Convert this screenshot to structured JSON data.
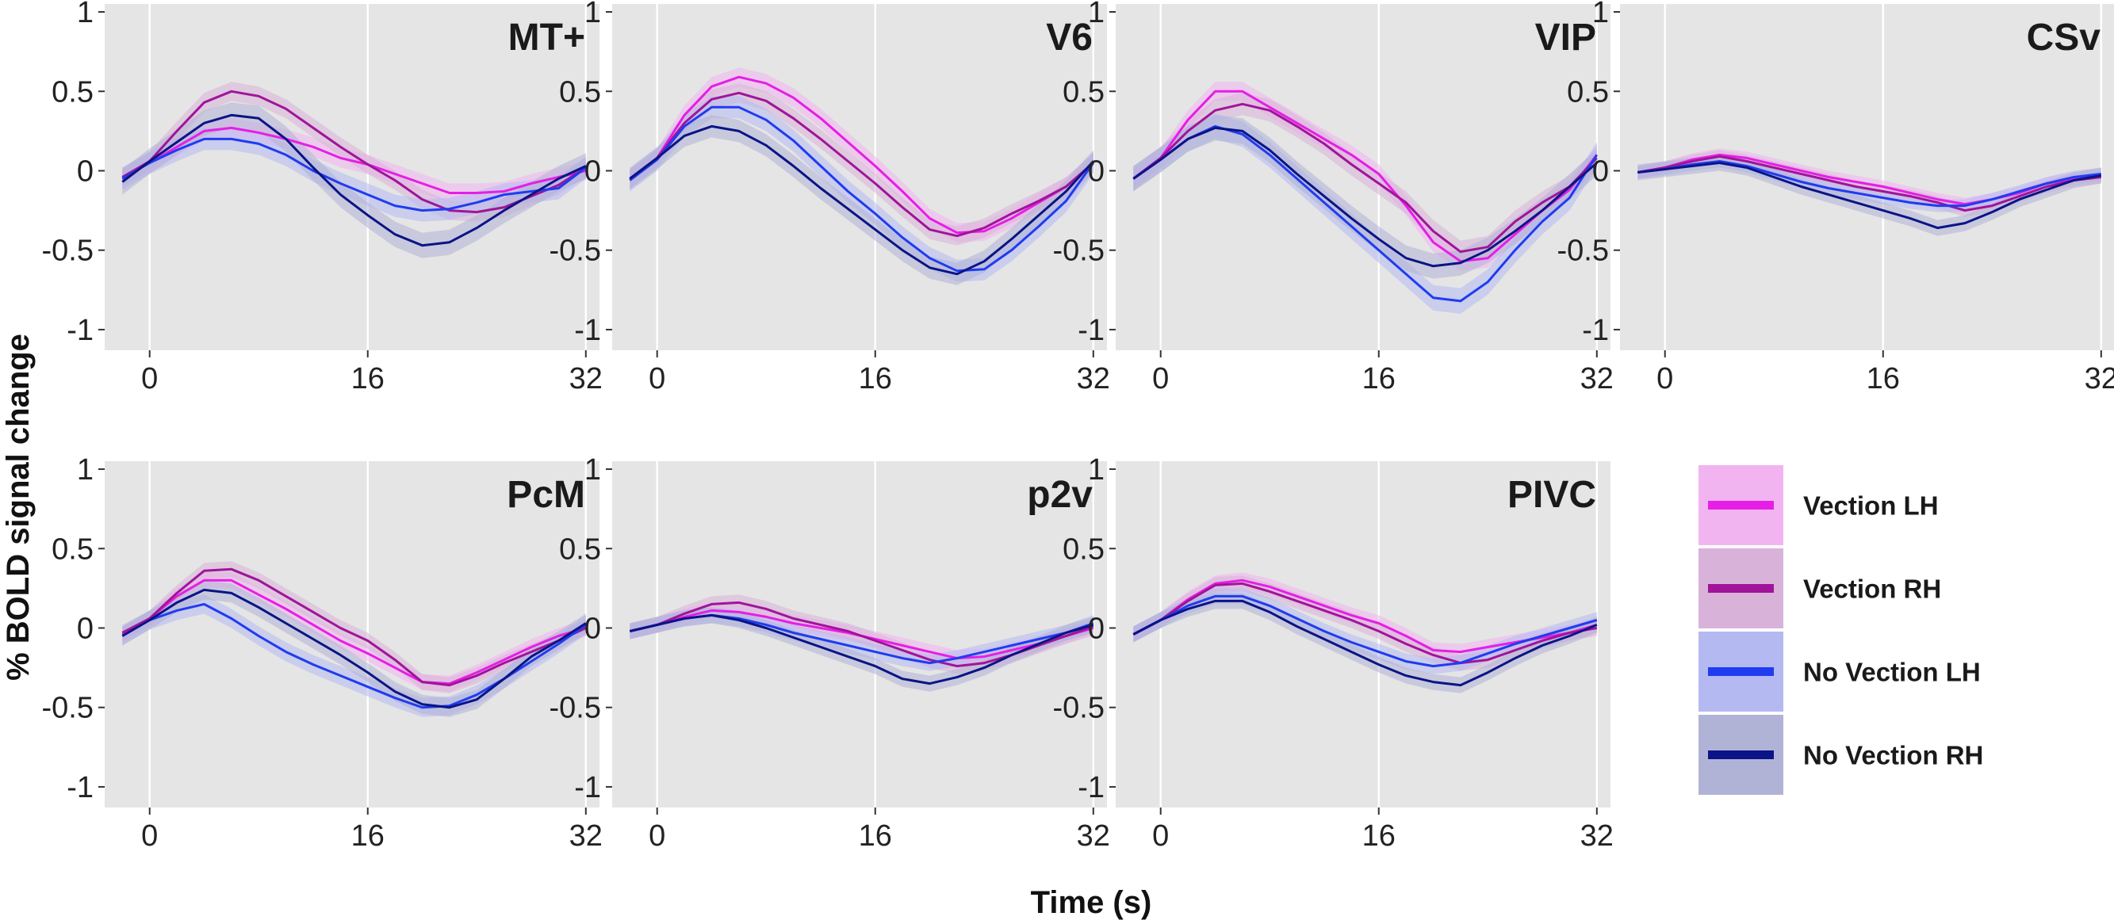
{
  "colors": {
    "vection_lh": "#e61ee6",
    "vection_rh": "#a0149a",
    "novection_lh": "#1f3cf0",
    "novection_rh": "#0a1486",
    "panel_bg": "#e5e5e5"
  },
  "legend": [
    {
      "label": "Vection LH",
      "color": "#e61ee6",
      "fill": "#f2b4f0"
    },
    {
      "label": "Vection RH",
      "color": "#a0149a",
      "fill": "#d9b2d9"
    },
    {
      "label": "No Vection LH",
      "color": "#1f3cf0",
      "fill": "#b4b9f2"
    },
    {
      "label": "No Vection RH",
      "color": "#0a1486",
      "fill": "#b1b3d6"
    }
  ],
  "chart_data": {
    "type": "line",
    "xlabel": "Time (s)",
    "ylabel": "% BOLD signal change",
    "xlim": [
      -3.3,
      33
    ],
    "ylim": [
      -1.13,
      1.05
    ],
    "x_ticks": [
      0,
      16,
      32
    ],
    "x_tick_labels": [
      "0",
      "16",
      "32"
    ],
    "y_ticks": [
      1,
      0.5,
      0,
      -0.5,
      -1
    ],
    "y_tick_labels": [
      "1",
      "0.5",
      "0",
      "-0.5",
      "-1"
    ],
    "x": [
      -2,
      0,
      2,
      4,
      6,
      8,
      10,
      12,
      14,
      16,
      18,
      20,
      22,
      24,
      26,
      28,
      30,
      32
    ],
    "series_names": [
      "Vection LH",
      "Vection RH",
      "No Vection LH",
      "No Vection RH"
    ],
    "panels": [
      {
        "title": "MT+",
        "ci": [
          0.06,
          0.06,
          0.07,
          0.08
        ],
        "series": [
          [
            -0.04,
            0.05,
            0.15,
            0.25,
            0.27,
            0.24,
            0.2,
            0.15,
            0.08,
            0.04,
            -0.02,
            -0.08,
            -0.14,
            -0.14,
            -0.13,
            -0.08,
            -0.04,
            0.0
          ],
          [
            -0.04,
            0.06,
            0.25,
            0.43,
            0.5,
            0.47,
            0.39,
            0.27,
            0.15,
            0.04,
            -0.06,
            -0.18,
            -0.25,
            -0.26,
            -0.23,
            -0.16,
            -0.09,
            0.02
          ],
          [
            -0.05,
            0.05,
            0.13,
            0.2,
            0.2,
            0.17,
            0.1,
            0.0,
            -0.08,
            -0.15,
            -0.22,
            -0.25,
            -0.24,
            -0.2,
            -0.15,
            -0.13,
            -0.11,
            0.02
          ],
          [
            -0.07,
            0.06,
            0.18,
            0.3,
            0.35,
            0.33,
            0.2,
            0.02,
            -0.15,
            -0.28,
            -0.4,
            -0.47,
            -0.45,
            -0.36,
            -0.25,
            -0.15,
            -0.05,
            0.03
          ]
        ]
      },
      {
        "title": "V6",
        "ci": [
          0.06,
          0.06,
          0.07,
          0.07
        ],
        "series": [
          [
            -0.05,
            0.08,
            0.35,
            0.53,
            0.59,
            0.55,
            0.46,
            0.33,
            0.18,
            0.03,
            -0.13,
            -0.3,
            -0.39,
            -0.38,
            -0.3,
            -0.2,
            -0.1,
            0.05
          ],
          [
            -0.05,
            0.08,
            0.3,
            0.45,
            0.49,
            0.44,
            0.33,
            0.2,
            0.06,
            -0.08,
            -0.23,
            -0.37,
            -0.41,
            -0.36,
            -0.27,
            -0.19,
            -0.1,
            0.05
          ],
          [
            -0.06,
            0.07,
            0.28,
            0.4,
            0.4,
            0.32,
            0.19,
            0.03,
            -0.13,
            -0.27,
            -0.42,
            -0.55,
            -0.63,
            -0.62,
            -0.5,
            -0.35,
            -0.19,
            0.05
          ],
          [
            -0.05,
            0.08,
            0.22,
            0.28,
            0.25,
            0.16,
            0.03,
            -0.11,
            -0.24,
            -0.37,
            -0.5,
            -0.61,
            -0.65,
            -0.57,
            -0.43,
            -0.28,
            -0.13,
            0.06
          ]
        ]
      },
      {
        "title": "VIP",
        "ci": [
          0.06,
          0.07,
          0.08,
          0.08
        ],
        "series": [
          [
            -0.05,
            0.08,
            0.32,
            0.5,
            0.5,
            0.4,
            0.3,
            0.2,
            0.1,
            -0.02,
            -0.22,
            -0.45,
            -0.57,
            -0.55,
            -0.4,
            -0.25,
            -0.12,
            0.1
          ],
          [
            -0.05,
            0.08,
            0.25,
            0.38,
            0.42,
            0.38,
            0.28,
            0.17,
            0.04,
            -0.08,
            -0.2,
            -0.38,
            -0.51,
            -0.48,
            -0.32,
            -0.2,
            -0.1,
            0.08
          ],
          [
            -0.05,
            0.07,
            0.2,
            0.28,
            0.23,
            0.1,
            -0.05,
            -0.2,
            -0.35,
            -0.5,
            -0.65,
            -0.8,
            -0.82,
            -0.7,
            -0.5,
            -0.32,
            -0.17,
            0.1
          ],
          [
            -0.05,
            0.07,
            0.2,
            0.27,
            0.25,
            0.13,
            -0.02,
            -0.16,
            -0.3,
            -0.43,
            -0.55,
            -0.6,
            -0.58,
            -0.5,
            -0.38,
            -0.25,
            -0.1,
            0.05
          ]
        ]
      },
      {
        "title": "CSv",
        "ci": [
          0.04,
          0.04,
          0.04,
          0.05
        ],
        "series": [
          [
            -0.01,
            0.02,
            0.07,
            0.1,
            0.08,
            0.04,
            0.0,
            -0.04,
            -0.07,
            -0.1,
            -0.14,
            -0.18,
            -0.21,
            -0.18,
            -0.14,
            -0.08,
            -0.05,
            -0.03
          ],
          [
            -0.01,
            0.02,
            0.06,
            0.09,
            0.06,
            0.02,
            -0.02,
            -0.06,
            -0.1,
            -0.13,
            -0.16,
            -0.2,
            -0.25,
            -0.22,
            -0.16,
            -0.1,
            -0.06,
            -0.04
          ],
          [
            -0.01,
            0.01,
            0.04,
            0.06,
            0.03,
            -0.02,
            -0.07,
            -0.11,
            -0.14,
            -0.17,
            -0.2,
            -0.22,
            -0.22,
            -0.18,
            -0.13,
            -0.08,
            -0.04,
            -0.02
          ],
          [
            -0.01,
            0.01,
            0.03,
            0.05,
            0.02,
            -0.04,
            -0.1,
            -0.15,
            -0.2,
            -0.25,
            -0.3,
            -0.36,
            -0.33,
            -0.26,
            -0.18,
            -0.12,
            -0.06,
            -0.03
          ]
        ]
      },
      {
        "title": "PcM",
        "ci": [
          0.05,
          0.05,
          0.06,
          0.06
        ],
        "series": [
          [
            -0.04,
            0.06,
            0.2,
            0.3,
            0.3,
            0.21,
            0.12,
            0.02,
            -0.08,
            -0.16,
            -0.25,
            -0.34,
            -0.35,
            -0.28,
            -0.2,
            -0.12,
            -0.05,
            0.0
          ],
          [
            -0.03,
            0.06,
            0.22,
            0.36,
            0.37,
            0.3,
            0.2,
            0.1,
            0.0,
            -0.08,
            -0.2,
            -0.34,
            -0.36,
            -0.3,
            -0.22,
            -0.15,
            -0.08,
            0.0
          ],
          [
            -0.05,
            0.05,
            0.11,
            0.15,
            0.06,
            -0.05,
            -0.15,
            -0.23,
            -0.3,
            -0.37,
            -0.44,
            -0.5,
            -0.49,
            -0.42,
            -0.32,
            -0.21,
            -0.1,
            0.02
          ],
          [
            -0.05,
            0.05,
            0.16,
            0.24,
            0.22,
            0.13,
            0.03,
            -0.07,
            -0.17,
            -0.28,
            -0.4,
            -0.48,
            -0.5,
            -0.45,
            -0.32,
            -0.18,
            -0.08,
            0.03
          ]
        ]
      },
      {
        "title": "p2v",
        "ci": [
          0.05,
          0.05,
          0.05,
          0.05
        ],
        "series": [
          [
            -0.02,
            0.02,
            0.07,
            0.11,
            0.1,
            0.07,
            0.03,
            0.0,
            -0.03,
            -0.07,
            -0.11,
            -0.15,
            -0.19,
            -0.18,
            -0.14,
            -0.1,
            -0.05,
            0.0
          ],
          [
            -0.02,
            0.02,
            0.09,
            0.15,
            0.16,
            0.12,
            0.06,
            0.02,
            -0.02,
            -0.08,
            -0.14,
            -0.2,
            -0.24,
            -0.22,
            -0.17,
            -0.11,
            -0.05,
            0.01
          ],
          [
            -0.02,
            0.02,
            0.06,
            0.08,
            0.06,
            0.02,
            -0.03,
            -0.07,
            -0.11,
            -0.15,
            -0.19,
            -0.22,
            -0.19,
            -0.15,
            -0.11,
            -0.07,
            -0.03,
            0.03
          ],
          [
            -0.02,
            0.02,
            0.06,
            0.08,
            0.05,
            0.0,
            -0.06,
            -0.12,
            -0.18,
            -0.24,
            -0.32,
            -0.35,
            -0.31,
            -0.25,
            -0.17,
            -0.1,
            -0.03,
            0.02
          ]
        ]
      },
      {
        "title": "PIVC",
        "ci": [
          0.05,
          0.05,
          0.05,
          0.05
        ],
        "series": [
          [
            -0.04,
            0.05,
            0.18,
            0.28,
            0.3,
            0.26,
            0.2,
            0.14,
            0.08,
            0.03,
            -0.05,
            -0.14,
            -0.15,
            -0.12,
            -0.09,
            -0.06,
            -0.03,
            0.02
          ],
          [
            -0.04,
            0.05,
            0.17,
            0.27,
            0.28,
            0.23,
            0.17,
            0.11,
            0.05,
            -0.02,
            -0.1,
            -0.17,
            -0.22,
            -0.2,
            -0.14,
            -0.08,
            -0.03,
            0.0
          ],
          [
            -0.04,
            0.05,
            0.14,
            0.2,
            0.2,
            0.14,
            0.06,
            -0.02,
            -0.09,
            -0.15,
            -0.21,
            -0.24,
            -0.22,
            -0.16,
            -0.1,
            -0.05,
            0.0,
            0.05
          ],
          [
            -0.04,
            0.05,
            0.12,
            0.17,
            0.17,
            0.1,
            0.01,
            -0.07,
            -0.15,
            -0.23,
            -0.3,
            -0.34,
            -0.36,
            -0.28,
            -0.19,
            -0.11,
            -0.05,
            0.02
          ]
        ]
      }
    ]
  }
}
